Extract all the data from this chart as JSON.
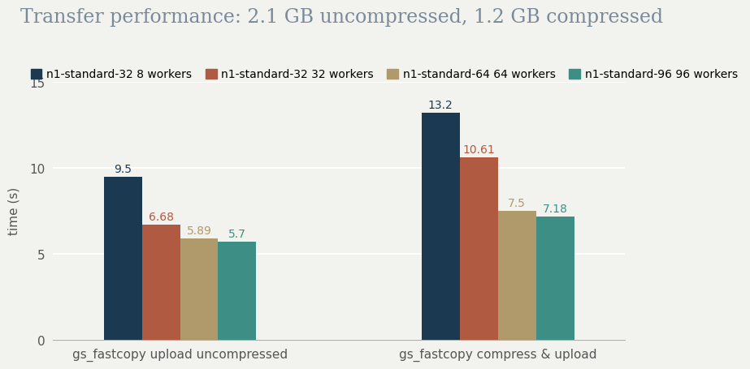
{
  "title": "Transfer performance: 2.1 GB uncompressed, 1.2 GB compressed",
  "ylabel": "time (s)",
  "categories": [
    "gs_fastcopy upload uncompressed",
    "gs_fastcopy compress & upload"
  ],
  "series": [
    {
      "label": "n1-standard-32 8 workers",
      "color": "#1b3a52",
      "values": [
        9.5,
        13.2
      ]
    },
    {
      "label": "n1-standard-32 32 workers",
      "color": "#b05a42",
      "values": [
        6.68,
        10.61
      ]
    },
    {
      "label": "n1-standard-64 64 workers",
      "color": "#b0996a",
      "values": [
        5.89,
        7.5
      ]
    },
    {
      "label": "n1-standard-96 96 workers",
      "color": "#3d8f85",
      "values": [
        5.7,
        7.18
      ]
    }
  ],
  "ylim": [
    0,
    15
  ],
  "yticks": [
    0,
    5,
    10,
    15
  ],
  "bar_width": 0.12,
  "title_fontsize": 17,
  "label_fontsize": 11,
  "tick_fontsize": 11,
  "annotation_fontsize": 10,
  "legend_fontsize": 10,
  "background_color": "#f2f2ee",
  "grid_color": "#ffffff",
  "title_color": "#7a8a9a",
  "value_label_colors": [
    "#1b3a52",
    "#b05a42",
    "#b0996a",
    "#3d8f85"
  ]
}
